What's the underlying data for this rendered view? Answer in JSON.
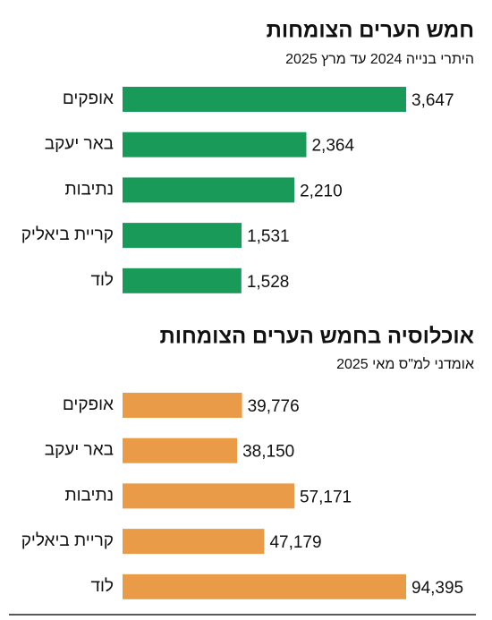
{
  "chart_data": [
    {
      "type": "bar",
      "title": "חמש הערים הצומחות",
      "subtitle": "היתרי בנייה 2024 עד מרץ 2025",
      "categories": [
        "אופקים",
        "באר יעקב",
        "נתיבות",
        "קריית ביאליק",
        "לוד"
      ],
      "values": [
        3647,
        2364,
        2210,
        1531,
        1528
      ],
      "value_labels": [
        "3,647",
        "2,364",
        "2,210",
        "1,531",
        "1,528"
      ],
      "color": "#1a9a58"
    },
    {
      "type": "bar",
      "title": "אוכלוסיה בחמש הערים הצומחות",
      "subtitle": "אומדני למ\"ס מאי 2025",
      "categories": [
        "אופקים",
        "באר יעקב",
        "נתיבות",
        "קריית ביאליק",
        "לוד"
      ],
      "values": [
        39776,
        38150,
        57171,
        47179,
        94395
      ],
      "value_labels": [
        "39,776",
        "38,150",
        "57,171",
        "47,179",
        "94,395"
      ],
      "color": "#e99b47"
    }
  ]
}
